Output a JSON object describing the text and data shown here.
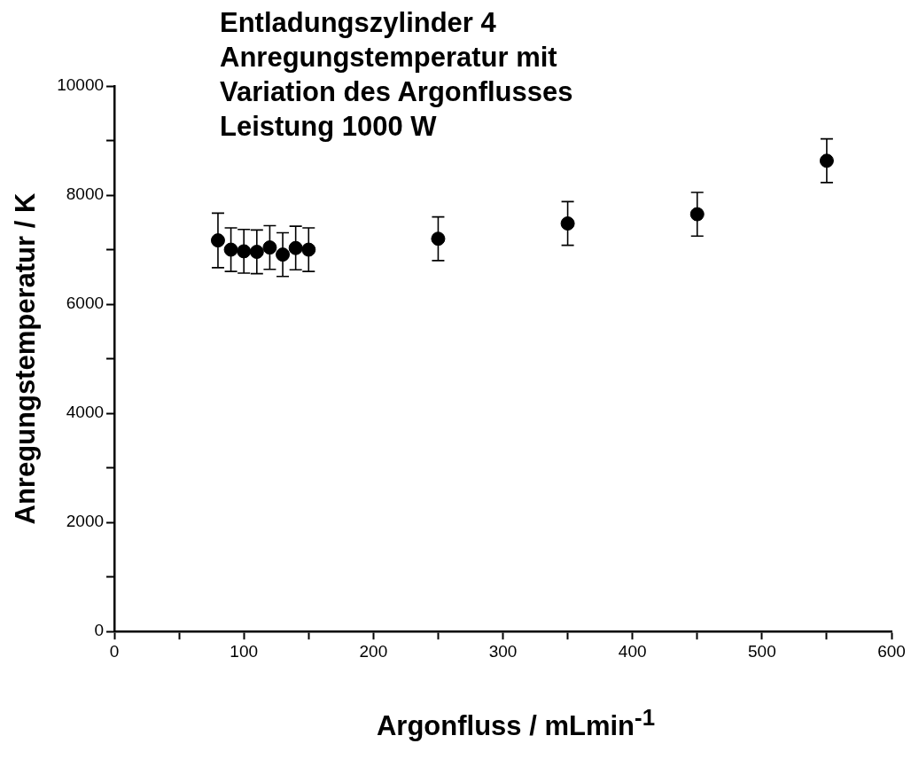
{
  "chart_data": {
    "type": "scatter",
    "title": "Entladungszylinder 4\nAnregungstemperatur mit\nVariation des Argonflusses\nLeistung 1000 W",
    "xlabel": "Argonfluss / mLmin$^{-1}$",
    "ylabel": "Anregungstemperatur / K",
    "x": [
      80,
      90,
      100,
      110,
      120,
      130,
      140,
      150,
      250,
      350,
      450,
      550
    ],
    "series": [
      {
        "color": "#000000",
        "values": [
          7170,
          7000,
          6970,
          6960,
          7040,
          6910,
          7030,
          7000,
          7200,
          7480,
          7650,
          8630
        ],
        "errors": [
          500,
          400,
          400,
          400,
          400,
          400,
          400,
          400,
          400,
          400,
          400,
          400
        ]
      }
    ],
    "xlim": [
      0,
      600
    ],
    "xticks": [
      0,
      {
        "value": 50,
        "label": null
      },
      100,
      {
        "value": 150,
        "label": null
      },
      200,
      {
        "value": 250,
        "label": null
      },
      300,
      {
        "value": 350,
        "label": null
      },
      400,
      {
        "value": 450,
        "label": null
      },
      500,
      {
        "value": 550,
        "label": null
      },
      600
    ],
    "ylim": [
      0,
      10000
    ],
    "yticks": [
      0,
      {
        "value": 1000,
        "label": null
      },
      2000,
      {
        "value": 3000,
        "label": null
      },
      4000,
      {
        "value": 5000,
        "label": null
      },
      6000,
      {
        "value": 7000,
        "label": null
      },
      8000,
      {
        "value": 9000,
        "label": null
      },
      10000
    ],
    "marker": "circle",
    "grid": false,
    "legend": false
  }
}
